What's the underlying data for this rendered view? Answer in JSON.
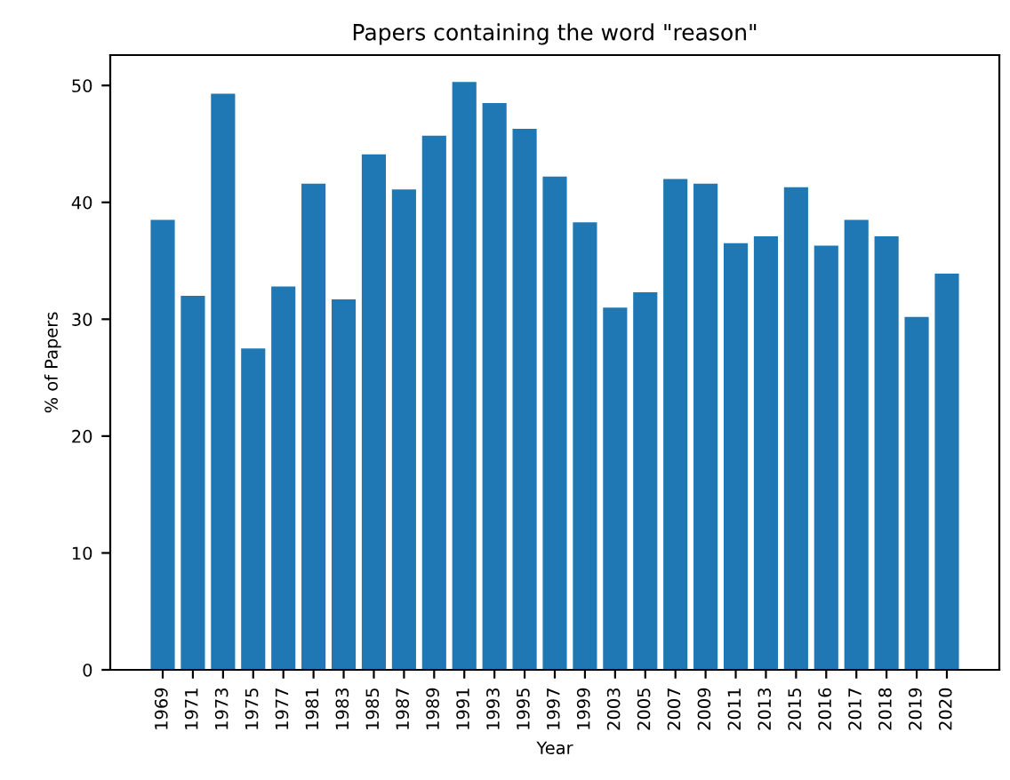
{
  "chart_data": {
    "type": "bar",
    "title": "Papers containing the word \"reason\"",
    "xlabel": "Year",
    "ylabel": "% of Papers",
    "categories": [
      "1969",
      "1971",
      "1973",
      "1975",
      "1977",
      "1981",
      "1983",
      "1985",
      "1987",
      "1989",
      "1991",
      "1993",
      "1995",
      "1997",
      "1999",
      "2003",
      "2005",
      "2007",
      "2009",
      "2011",
      "2013",
      "2015",
      "2016",
      "2017",
      "2018",
      "2019",
      "2020"
    ],
    "values": [
      38.5,
      32,
      49.3,
      27.5,
      32.8,
      41.6,
      31.7,
      44.1,
      41.1,
      45.7,
      50.3,
      48.5,
      46.3,
      42.2,
      38.3,
      31,
      32.3,
      42,
      41.6,
      36.5,
      37.1,
      41.3,
      36.3,
      38.5,
      37.1,
      30.2,
      33.9
    ],
    "color": "#1f77b4",
    "ylim": [
      0,
      52.6
    ],
    "yticks": [
      0,
      10,
      20,
      30,
      40,
      50
    ],
    "grid": false,
    "legend": false
  }
}
